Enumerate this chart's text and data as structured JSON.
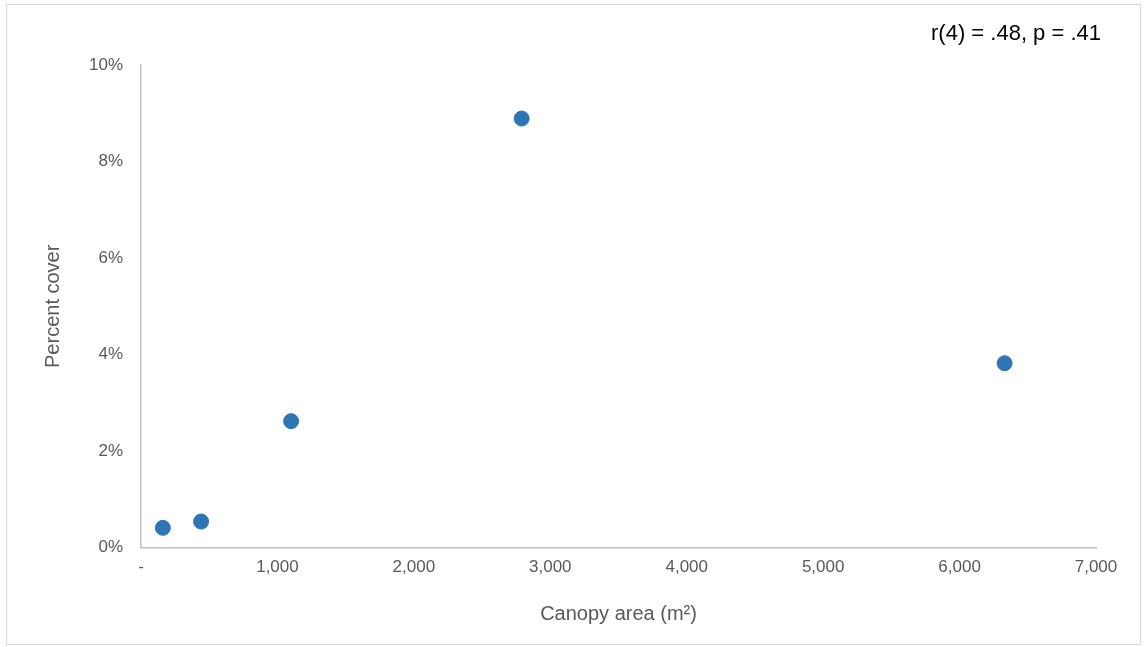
{
  "chart_data": {
    "type": "scatter",
    "xlabel": "Canopy area (m²)",
    "ylabel": "Percent cover",
    "annotations": [
      "r(4) = .48, p = .41"
    ],
    "x": [
      160,
      440,
      1100,
      2790,
      6330
    ],
    "series": [
      {
        "color": "#2e75b6",
        "values": [
          0.41,
          0.54,
          2.62,
          8.89,
          3.82
        ]
      }
    ],
    "xlim": [
      0,
      7000
    ],
    "xticks": [
      {
        "value": 0,
        "label": "-"
      },
      {
        "value": 1000,
        "label": "1,000"
      },
      {
        "value": 2000,
        "label": "2,000"
      },
      {
        "value": 3000,
        "label": "3,000"
      },
      {
        "value": 4000,
        "label": "4,000"
      },
      {
        "value": 5000,
        "label": "5,000"
      },
      {
        "value": 6000,
        "label": "6,000"
      },
      {
        "value": 7000,
        "label": "7,000"
      }
    ],
    "ylim": [
      0,
      10
    ],
    "yticks": [
      {
        "value": 0,
        "label": "0%"
      },
      {
        "value": 2,
        "label": "2%"
      },
      {
        "value": 4,
        "label": "4%"
      },
      {
        "value": 6,
        "label": "6%"
      },
      {
        "value": 8,
        "label": "8%"
      },
      {
        "value": 10,
        "label": "10%"
      }
    ],
    "grid": false,
    "legend": false,
    "marker": "circle"
  }
}
